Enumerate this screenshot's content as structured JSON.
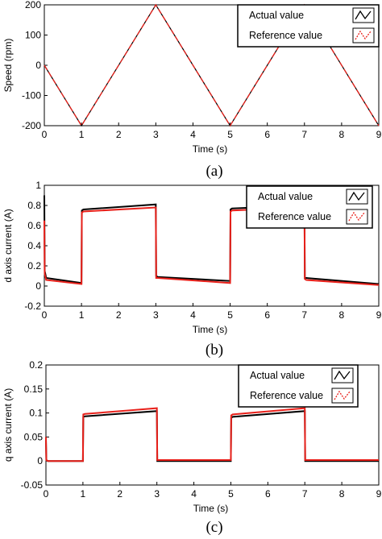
{
  "chart_data": [
    {
      "type": "line",
      "caption": "(a)",
      "xlabel": "Time (s)",
      "ylabel": "Speed (rpm)",
      "xlim": [
        0,
        9
      ],
      "ylim": [
        -200,
        200
      ],
      "xticks": [
        0,
        1,
        2,
        3,
        4,
        5,
        6,
        7,
        8,
        9
      ],
      "yticks": [
        -200,
        -100,
        0,
        100,
        200
      ],
      "grid": false,
      "legend_position": "top-right",
      "series": [
        {
          "name": "Actual value",
          "color": "#000000",
          "style": "solid",
          "x": [
            0,
            1,
            3,
            5,
            7,
            9
          ],
          "y": [
            0,
            -200,
            200,
            -200,
            200,
            -200
          ]
        },
        {
          "name": "Reference value",
          "color": "#e8201a",
          "style": "dashed",
          "x": [
            0,
            1,
            3,
            5,
            7,
            9
          ],
          "y": [
            0,
            -200,
            200,
            -200,
            200,
            -200
          ]
        }
      ]
    },
    {
      "type": "line",
      "caption": "(b)",
      "xlabel": "Time (s)",
      "ylabel": "d axis current (A)",
      "xlim": [
        0,
        9
      ],
      "ylim": [
        -0.2,
        1
      ],
      "xticks": [
        0,
        1,
        2,
        3,
        4,
        5,
        6,
        7,
        8,
        9
      ],
      "yticks": [
        -0.2,
        0,
        0.2,
        0.4,
        0.6,
        0.8,
        1
      ],
      "grid": false,
      "legend_position": "top-right",
      "series": [
        {
          "name": "Actual value",
          "color": "#000000",
          "style": "solid",
          "x": [
            0,
            0.01,
            0.05,
            1,
            1.01,
            1.05,
            3,
            3.01,
            3.05,
            5,
            5.01,
            5.05,
            7,
            7.01,
            7.05,
            9
          ],
          "y": [
            0.9,
            0.15,
            0.08,
            0.03,
            0.75,
            0.76,
            0.81,
            0.1,
            0.09,
            0.05,
            0.76,
            0.77,
            0.8,
            0.08,
            0.08,
            0.02
          ]
        },
        {
          "name": "Reference value",
          "color": "#e8201a",
          "style": "solid",
          "x": [
            0,
            0.01,
            0.05,
            1,
            1.01,
            1.05,
            3,
            3.01,
            3.05,
            5,
            5.01,
            5.05,
            7,
            7.01,
            7.05,
            9
          ],
          "y": [
            0.65,
            0.12,
            0.06,
            0.02,
            0.73,
            0.74,
            0.78,
            0.08,
            0.08,
            0.03,
            0.74,
            0.75,
            0.78,
            0.07,
            0.06,
            0.01
          ]
        }
      ]
    },
    {
      "type": "line",
      "caption": "(c)",
      "xlabel": "Time (s)",
      "ylabel": "q axis current (A)",
      "xlim": [
        0,
        9
      ],
      "ylim": [
        -0.05,
        0.2
      ],
      "xticks": [
        0,
        1,
        2,
        3,
        4,
        5,
        6,
        7,
        8,
        9
      ],
      "yticks": [
        -0.05,
        0,
        0.05,
        0.1,
        0.15,
        0.2
      ],
      "grid": false,
      "legend_position": "top-right",
      "series": [
        {
          "name": "Actual value",
          "color": "#000000",
          "style": "solid",
          "x": [
            0,
            0.01,
            0.05,
            1,
            1.01,
            1.05,
            3,
            3.01,
            3.05,
            5,
            5.01,
            5.05,
            7,
            7.01,
            7.05,
            9
          ],
          "y": [
            0.045,
            0.002,
            0,
            0,
            0.092,
            0.093,
            0.104,
            0,
            0,
            0,
            0.09,
            0.092,
            0.104,
            0,
            0,
            0
          ]
        },
        {
          "name": "Reference value",
          "color": "#e8201a",
          "style": "solid",
          "x": [
            0,
            0.01,
            0.05,
            1,
            1.01,
            1.05,
            3,
            3.01,
            3.05,
            5,
            5.01,
            5.05,
            7,
            7.01,
            7.05,
            9
          ],
          "y": [
            0.05,
            0.002,
            0,
            0,
            0.097,
            0.098,
            0.11,
            0.002,
            0.002,
            0.002,
            0.095,
            0.097,
            0.11,
            0.002,
            0.002,
            0.002
          ]
        }
      ]
    }
  ]
}
